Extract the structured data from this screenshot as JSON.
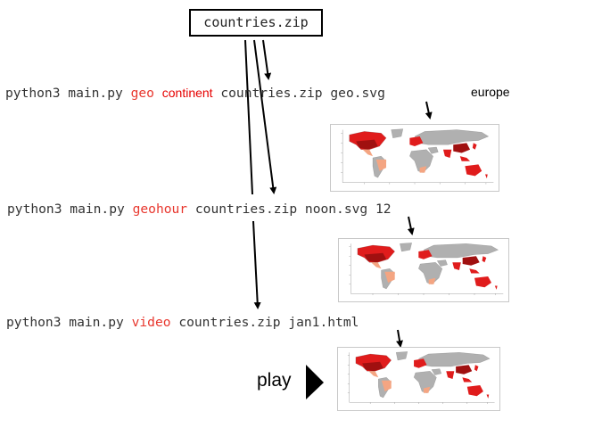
{
  "zip_box": {
    "label": "countries.zip"
  },
  "commands": [
    {
      "prefix": "python3 main.py ",
      "mode": "geo",
      "extra": "continent",
      "args": " countries.zip geo.svg",
      "note": "europe"
    },
    {
      "prefix": "python3 main.py ",
      "mode": "geohour",
      "args": " countries.zip noon.svg 12"
    },
    {
      "prefix": "python3 main.py ",
      "mode": "video",
      "args": " countries.zip jan1.html"
    }
  ],
  "play": {
    "label": "play",
    "icon": "play-triangle-icon"
  },
  "colors": {
    "highlight": "#e8372e",
    "map_land": "#b3b3b3",
    "map_dark_red": "#a01010",
    "map_red": "#e01c1c",
    "map_light": "#f4a582"
  }
}
